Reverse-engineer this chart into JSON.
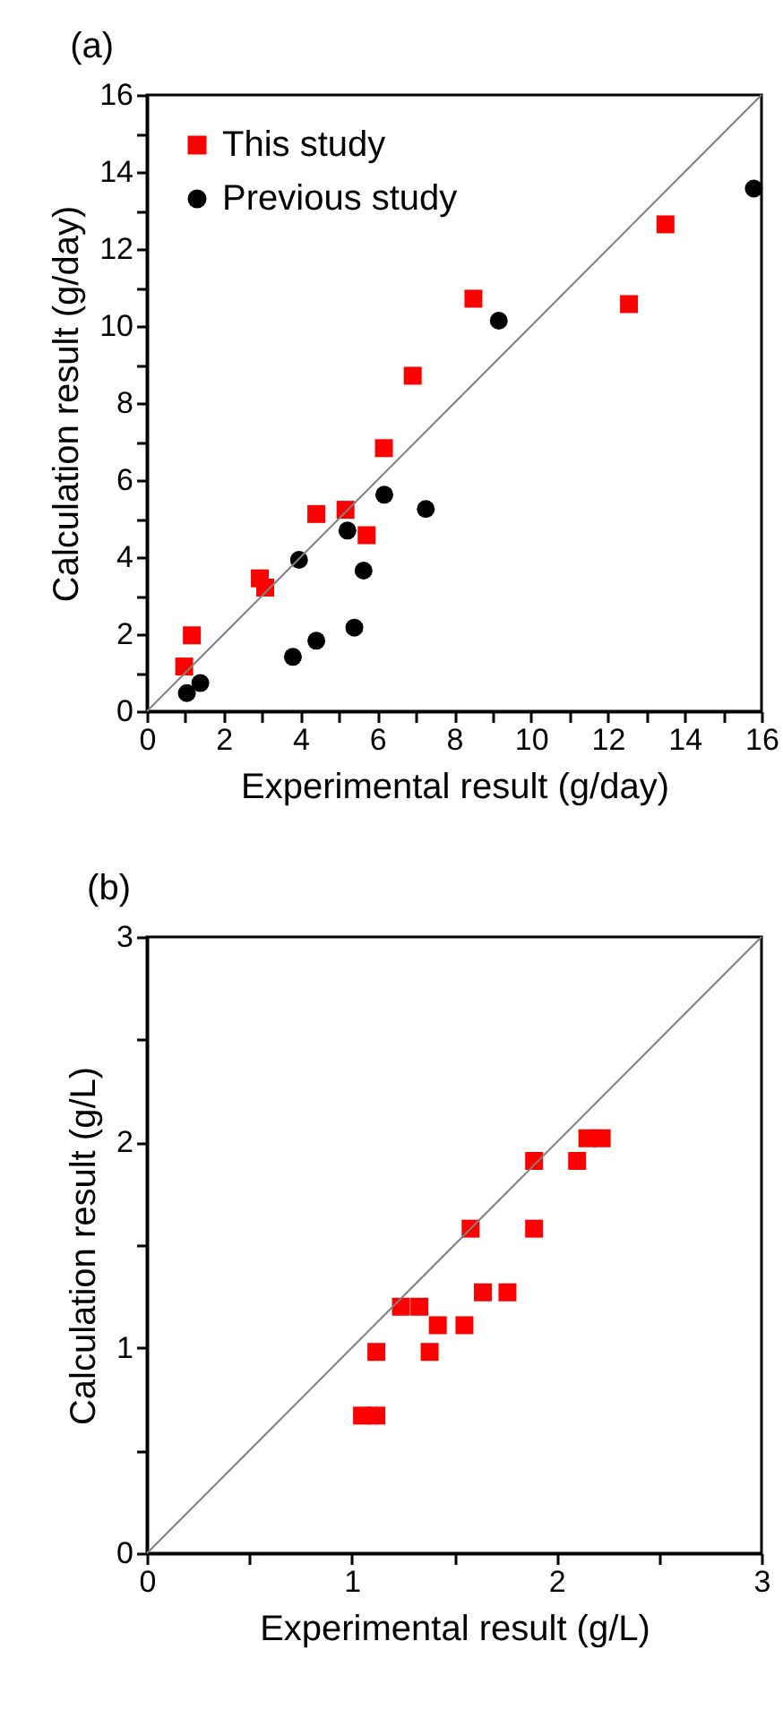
{
  "chart_data": [
    {
      "type": "scatter",
      "title": "(a)",
      "xlabel": "Experimental result (g/day)",
      "ylabel": "Calculation result (g/day)",
      "xlim": [
        0,
        16
      ],
      "ylim": [
        0,
        16
      ],
      "xticks": [
        0,
        {
          "value": 1,
          "label": null
        },
        2,
        {
          "value": 3,
          "label": null
        },
        4,
        {
          "value": 5,
          "label": null
        },
        6,
        {
          "value": 7,
          "label": null
        },
        8,
        {
          "value": 9,
          "label": null
        },
        10,
        {
          "value": 11,
          "label": null
        },
        12,
        {
          "value": 13,
          "label": null
        },
        14,
        {
          "value": 15,
          "label": null
        },
        16
      ],
      "yticks": [
        0,
        {
          "value": 1,
          "label": null
        },
        2,
        {
          "value": 3,
          "label": null
        },
        4,
        {
          "value": 5,
          "label": null
        },
        6,
        {
          "value": 7,
          "label": null
        },
        8,
        {
          "value": 9,
          "label": null
        },
        10,
        {
          "value": 11,
          "label": null
        },
        12,
        {
          "value": 13,
          "label": null
        },
        14,
        {
          "value": 15,
          "label": null
        },
        16
      ],
      "legend": "top left",
      "series": [
        {
          "name": "This study",
          "color": "#ff0000",
          "marker": "square",
          "x": [
            0.97,
            1.17,
            2.94,
            3.08,
            4.41,
            5.17,
            5.72,
            6.17,
            6.92,
            8.5,
            12.55,
            13.5
          ],
          "values": [
            1.16,
            1.97,
            3.45,
            3.21,
            5.12,
            5.23,
            4.57,
            6.83,
            8.71,
            10.71,
            10.57,
            12.64
          ]
        },
        {
          "name": "Previous study",
          "color": "#000000",
          "marker": "circle",
          "x": [
            1.04,
            1.39,
            3.8,
            4.41,
            3.96,
            5.22,
            5.64,
            5.4,
            6.18,
            7.26,
            9.16,
            15.8
          ],
          "values": [
            0.47,
            0.73,
            1.41,
            1.83,
            3.93,
            4.69,
            3.65,
            2.17,
            5.62,
            5.25,
            10.14,
            13.57
          ]
        },
        {
          "type": "line",
          "color": "#808080",
          "x": [
            0,
            16
          ],
          "values": [
            0,
            16
          ]
        }
      ]
    },
    {
      "type": "scatter",
      "title": "(b)",
      "xlabel": "Experimental result (g/L)",
      "ylabel": "Calculation result (g/L)",
      "xlim": [
        0,
        3
      ],
      "ylim": [
        0,
        3
      ],
      "xticks": [
        0,
        {
          "value": 0.5,
          "label": null
        },
        1,
        {
          "value": 1.5,
          "label": null
        },
        2,
        {
          "value": 2.5,
          "label": null
        },
        3
      ],
      "yticks": [
        0,
        {
          "value": 0.5,
          "label": null
        },
        1,
        {
          "value": 1.5,
          "label": null
        },
        2,
        {
          "value": 2.5,
          "label": null
        },
        3
      ],
      "series": [
        {
          "color": "#ff0000",
          "marker": "square",
          "x": [
            1.05,
            1.12,
            1.12,
            1.38,
            1.24,
            1.33,
            1.42,
            1.55,
            1.58,
            1.64,
            1.76,
            1.89,
            1.89,
            2.1,
            2.15,
            2.22
          ],
          "values": [
            0.67,
            0.67,
            0.98,
            0.98,
            1.2,
            1.2,
            1.11,
            1.11,
            1.58,
            1.27,
            1.27,
            1.91,
            1.58,
            1.91,
            2.02,
            2.02
          ]
        },
        {
          "type": "line",
          "color": "#808080",
          "x": [
            0,
            3
          ],
          "values": [
            0,
            3
          ]
        }
      ]
    }
  ]
}
